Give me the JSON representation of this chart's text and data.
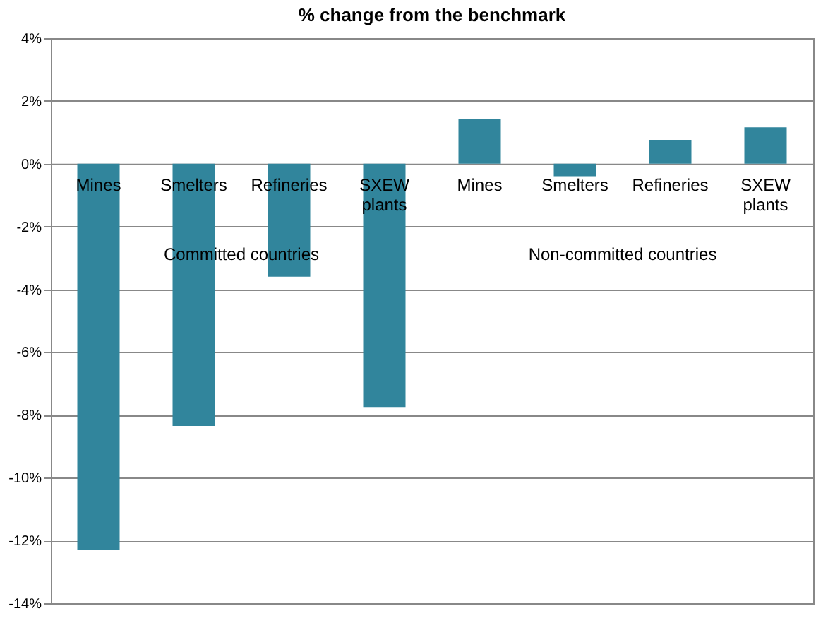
{
  "chart_data": {
    "type": "bar",
    "title": "% change from the benchmark",
    "categories": [
      "Mines",
      "Smelters",
      "Refineries",
      "SXEW plants",
      "Mines",
      "Smelters",
      "Refineries",
      "SXEW plants"
    ],
    "values": [
      -12.3,
      -8.35,
      -3.6,
      -7.75,
      1.43,
      -0.4,
      0.76,
      1.16
    ],
    "color": "#31859c",
    "ylim": [
      -14,
      4
    ],
    "yticks": [
      {
        "value": -14,
        "label": "-14%"
      },
      {
        "value": -12,
        "label": "-12%"
      },
      {
        "value": -10,
        "label": "-10%"
      },
      {
        "value": -8,
        "label": "-8%"
      },
      {
        "value": -6,
        "label": "-6%"
      },
      {
        "value": -4,
        "label": "-4%"
      },
      {
        "value": -2,
        "label": "-2%"
      },
      {
        "value": 0,
        "label": "0%"
      },
      {
        "value": 2,
        "label": "2%"
      },
      {
        "value": 4,
        "label": "4%"
      }
    ],
    "grid": "y",
    "annotations": [
      "Committed countries",
      "Non-committed countries"
    ]
  }
}
